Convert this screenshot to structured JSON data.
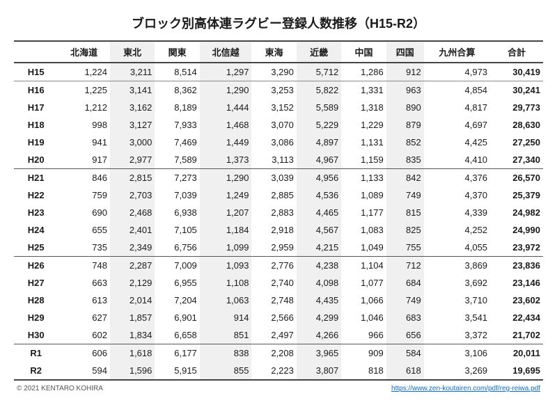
{
  "title": "ブロック別高体連ラグビー登録人数推移（H15-R2）",
  "columns": [
    "北海道",
    "東北",
    "関東",
    "北信越",
    "東海",
    "近畿",
    "中国",
    "四国",
    "九州合算",
    "合計"
  ],
  "shaded_col_indices": [
    1,
    3,
    5,
    7
  ],
  "rows": [
    {
      "label": "H15",
      "cells": [
        "1,224",
        "3,211",
        "8,514",
        "1,297",
        "3,290",
        "5,712",
        "1,286",
        "912",
        "4,973",
        "30,419"
      ],
      "sep": "minor"
    },
    {
      "label": "H16",
      "cells": [
        "1,225",
        "3,141",
        "8,362",
        "1,290",
        "3,253",
        "5,822",
        "1,331",
        "963",
        "4,854",
        "30,241"
      ]
    },
    {
      "label": "H17",
      "cells": [
        "1,212",
        "3,162",
        "8,189",
        "1,444",
        "3,152",
        "5,589",
        "1,318",
        "890",
        "4,817",
        "29,773"
      ]
    },
    {
      "label": "H18",
      "cells": [
        "998",
        "3,127",
        "7,933",
        "1,468",
        "3,070",
        "5,229",
        "1,229",
        "879",
        "4,697",
        "28,630"
      ]
    },
    {
      "label": "H19",
      "cells": [
        "941",
        "3,000",
        "7,469",
        "1,449",
        "3,086",
        "4,897",
        "1,131",
        "852",
        "4,425",
        "27,250"
      ]
    },
    {
      "label": "H20",
      "cells": [
        "917",
        "2,977",
        "7,589",
        "1,373",
        "3,113",
        "4,967",
        "1,159",
        "835",
        "4,410",
        "27,340"
      ],
      "sep": "major"
    },
    {
      "label": "H21",
      "cells": [
        "846",
        "2,815",
        "7,273",
        "1,290",
        "3,039",
        "4,956",
        "1,133",
        "842",
        "4,376",
        "26,570"
      ]
    },
    {
      "label": "H22",
      "cells": [
        "759",
        "2,703",
        "7,039",
        "1,249",
        "2,885",
        "4,536",
        "1,089",
        "749",
        "4,370",
        "25,379"
      ]
    },
    {
      "label": "H23",
      "cells": [
        "690",
        "2,468",
        "6,938",
        "1,207",
        "2,883",
        "4,465",
        "1,177",
        "815",
        "4,339",
        "24,982"
      ]
    },
    {
      "label": "H24",
      "cells": [
        "655",
        "2,401",
        "7,105",
        "1,184",
        "2,918",
        "4,567",
        "1,083",
        "825",
        "4,252",
        "24,990"
      ]
    },
    {
      "label": "H25",
      "cells": [
        "735",
        "2,349",
        "6,756",
        "1,099",
        "2,959",
        "4,215",
        "1,049",
        "755",
        "4,055",
        "23,972"
      ],
      "sep": "major"
    },
    {
      "label": "H26",
      "cells": [
        "748",
        "2,287",
        "7,009",
        "1,093",
        "2,776",
        "4,238",
        "1,104",
        "712",
        "3,869",
        "23,836"
      ]
    },
    {
      "label": "H27",
      "cells": [
        "663",
        "2,129",
        "6,955",
        "1,108",
        "2,740",
        "4,098",
        "1,077",
        "684",
        "3,692",
        "23,146"
      ]
    },
    {
      "label": "H28",
      "cells": [
        "613",
        "2,014",
        "7,204",
        "1,063",
        "2,748",
        "4,435",
        "1,066",
        "749",
        "3,710",
        "23,602"
      ]
    },
    {
      "label": "H29",
      "cells": [
        "627",
        "1,857",
        "6,901",
        "914",
        "2,566",
        "4,299",
        "1,046",
        "683",
        "3,541",
        "22,434"
      ]
    },
    {
      "label": "H30",
      "cells": [
        "602",
        "1,834",
        "6,658",
        "851",
        "2,497",
        "4,266",
        "966",
        "656",
        "3,372",
        "21,702"
      ],
      "sep": "major"
    },
    {
      "label": "R1",
      "cells": [
        "606",
        "1,618",
        "6,177",
        "838",
        "2,208",
        "3,965",
        "909",
        "584",
        "3,106",
        "20,011"
      ]
    },
    {
      "label": "R2",
      "cells": [
        "594",
        "1,596",
        "5,915",
        "855",
        "2,223",
        "3,807",
        "818",
        "618",
        "3,269",
        "19,695"
      ]
    }
  ],
  "footer": {
    "copyright": "© 2021 KENTARO KOHIRA",
    "link": "https://www.zen-koutairen.com/pdf/reg-reiwa.pdf"
  }
}
